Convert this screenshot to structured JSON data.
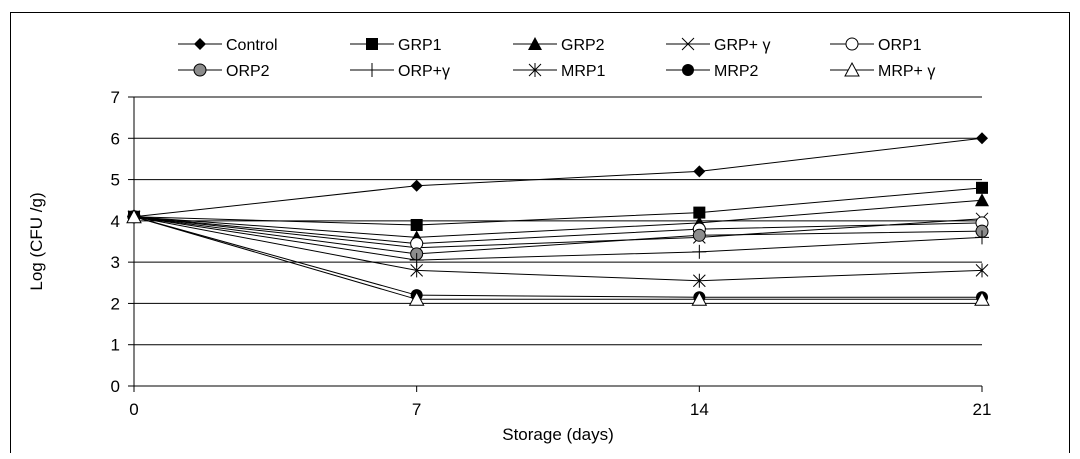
{
  "chart_data": {
    "type": "line",
    "xlabel": "Storage (days)",
    "ylabel": "Log (CFU /g)",
    "x": [
      0,
      7,
      14,
      21
    ],
    "xlim": [
      0,
      21
    ],
    "ylim": [
      0,
      7
    ],
    "y_ticks": [
      0,
      1,
      2,
      3,
      4,
      5,
      6,
      7
    ],
    "x_ticks": [
      0,
      7,
      14,
      21
    ],
    "grid": "horizontal",
    "legend_position": "top",
    "series": [
      {
        "name": "Control",
        "marker": "diamond-filled",
        "values": [
          4.1,
          4.85,
          5.2,
          6.0
        ]
      },
      {
        "name": "GRP1",
        "marker": "square-filled",
        "values": [
          4.1,
          3.9,
          4.2,
          4.8
        ]
      },
      {
        "name": "GRP2",
        "marker": "triangle-filled",
        "values": [
          4.1,
          3.6,
          3.95,
          4.5
        ]
      },
      {
        "name": "GRP+ γ",
        "marker": "x",
        "values": [
          4.1,
          3.35,
          3.6,
          4.05
        ]
      },
      {
        "name": "ORP1",
        "marker": "circle-open",
        "values": [
          4.1,
          3.45,
          3.8,
          3.95
        ]
      },
      {
        "name": "ORP2",
        "marker": "circle-gray",
        "values": [
          4.1,
          3.2,
          3.65,
          3.75
        ]
      },
      {
        "name": "ORP+γ",
        "marker": "plus",
        "values": [
          4.1,
          3.05,
          3.25,
          3.6
        ]
      },
      {
        "name": "MRP1",
        "marker": "asterisk",
        "values": [
          4.1,
          2.8,
          2.55,
          2.8
        ]
      },
      {
        "name": "MRP2",
        "marker": "circle-filled",
        "values": [
          4.1,
          2.2,
          2.15,
          2.15
        ]
      },
      {
        "name": "MRP+ γ",
        "marker": "triangle-open",
        "values": [
          4.1,
          2.1,
          2.1,
          2.1
        ]
      }
    ]
  }
}
